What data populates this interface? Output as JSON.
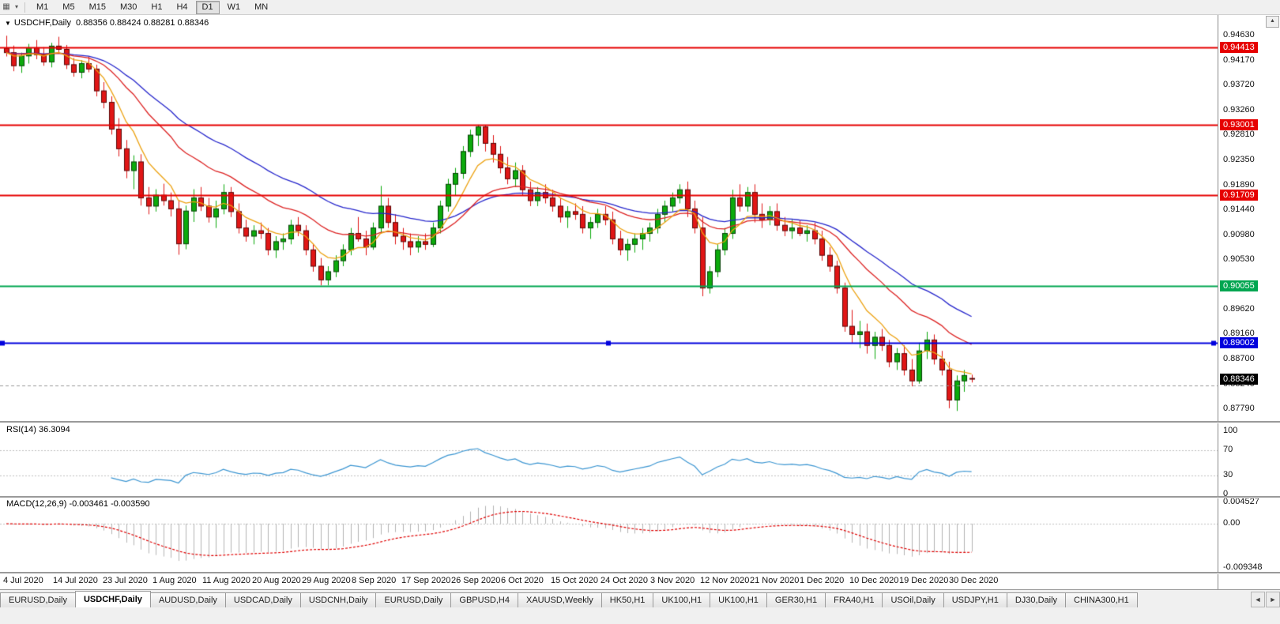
{
  "icons": {
    "chart_window": "▦",
    "dropdown": "▾",
    "chart_menu": "▼",
    "scroll_up": "▲",
    "tab_scroll_left": "◄",
    "tab_scroll_right": "►"
  },
  "toolbar": {
    "timeframes": [
      "M1",
      "M5",
      "M15",
      "M30",
      "H1",
      "H4",
      "D1",
      "W1",
      "MN"
    ],
    "active_timeframe": "D1"
  },
  "chart": {
    "symbol_title": "USDCHF,Daily",
    "ohlc_text": "0.88356 0.88424 0.88281 0.88346",
    "price_axis_ticks": [
      "0.94630",
      "0.94170",
      "0.93720",
      "0.93260",
      "0.92810",
      "0.92350",
      "0.91890",
      "0.91440",
      "0.90980",
      "0.90530",
      "0.89620",
      "0.89160",
      "0.88700",
      "0.88240",
      "0.87790"
    ]
  },
  "chart_data": {
    "type": "candlestick",
    "title": "USDCHF,Daily",
    "price_range": [
      0.8757,
      0.9485
    ],
    "bar_count": 130,
    "up_color": "#0caa0c",
    "down_color": "#e01616",
    "x_labels": [
      "4 Jul 2020",
      "14 Jul 2020",
      "23 Jul 2020",
      "1 Aug 2020",
      "11 Aug 2020",
      "20 Aug 2020",
      "29 Aug 2020",
      "8 Sep 2020",
      "17 Sep 2020",
      "26 Sep 2020",
      "6 Oct 2020",
      "15 Oct 2020",
      "24 Oct 2020",
      "3 Nov 2020",
      "12 Nov 2020",
      "21 Nov 2020",
      "1 Dec 2020",
      "10 Dec 2020",
      "19 Dec 2020",
      "30 Dec 2020"
    ],
    "candles": [
      [
        0.944,
        0.9463,
        0.9425,
        0.9432
      ],
      [
        0.9432,
        0.9445,
        0.9398,
        0.9408
      ],
      [
        0.9408,
        0.9432,
        0.9395,
        0.9426
      ],
      [
        0.9426,
        0.9448,
        0.9412,
        0.9441
      ],
      [
        0.9441,
        0.9455,
        0.942,
        0.9428
      ],
      [
        0.9428,
        0.9442,
        0.9408,
        0.9415
      ],
      [
        0.9415,
        0.945,
        0.9405,
        0.9444
      ],
      [
        0.9444,
        0.9461,
        0.943,
        0.9438
      ],
      [
        0.9438,
        0.9446,
        0.9402,
        0.941
      ],
      [
        0.941,
        0.9422,
        0.9388,
        0.9396
      ],
      [
        0.9396,
        0.9418,
        0.9385,
        0.9412
      ],
      [
        0.9412,
        0.9425,
        0.9396,
        0.9402
      ],
      [
        0.9402,
        0.941,
        0.9352,
        0.9362
      ],
      [
        0.9362,
        0.9378,
        0.933,
        0.9341
      ],
      [
        0.9341,
        0.9352,
        0.9282,
        0.9292
      ],
      [
        0.9292,
        0.9312,
        0.9242,
        0.9256
      ],
      [
        0.9256,
        0.9272,
        0.9202,
        0.9216
      ],
      [
        0.9216,
        0.9244,
        0.9182,
        0.9232
      ],
      [
        0.9232,
        0.9246,
        0.9152,
        0.9166
      ],
      [
        0.9166,
        0.9186,
        0.9136,
        0.9151
      ],
      [
        0.9151,
        0.9182,
        0.9141,
        0.9171
      ],
      [
        0.9171,
        0.9192,
        0.9152,
        0.9161
      ],
      [
        0.9161,
        0.9176,
        0.9132,
        0.9146
      ],
      [
        0.9146,
        0.9161,
        0.9062,
        0.9082
      ],
      [
        0.9082,
        0.9152,
        0.9072,
        0.9142
      ],
      [
        0.9142,
        0.9182,
        0.9122,
        0.9166
      ],
      [
        0.9166,
        0.9186,
        0.9142,
        0.9151
      ],
      [
        0.9151,
        0.9166,
        0.9121,
        0.9131
      ],
      [
        0.9131,
        0.9161,
        0.9111,
        0.9146
      ],
      [
        0.9146,
        0.9191,
        0.9136,
        0.9176
      ],
      [
        0.9176,
        0.9186,
        0.9131,
        0.9141
      ],
      [
        0.9141,
        0.9156,
        0.9101,
        0.9111
      ],
      [
        0.9111,
        0.9126,
        0.9086,
        0.9096
      ],
      [
        0.9096,
        0.9116,
        0.9081,
        0.9106
      ],
      [
        0.9106,
        0.9121,
        0.9091,
        0.9101
      ],
      [
        0.9101,
        0.9111,
        0.9061,
        0.9071
      ],
      [
        0.9071,
        0.9096,
        0.9056,
        0.9086
      ],
      [
        0.9086,
        0.9101,
        0.9071,
        0.9091
      ],
      [
        0.9091,
        0.9126,
        0.9081,
        0.9116
      ],
      [
        0.9116,
        0.9131,
        0.9096,
        0.9106
      ],
      [
        0.9106,
        0.9116,
        0.9061,
        0.9071
      ],
      [
        0.9071,
        0.9081,
        0.9031,
        0.9041
      ],
      [
        0.9041,
        0.9056,
        0.9006,
        0.9016
      ],
      [
        0.9016,
        0.9041,
        0.9006,
        0.9031
      ],
      [
        0.9031,
        0.9061,
        0.9021,
        0.9051
      ],
      [
        0.9051,
        0.9081,
        0.9041,
        0.9071
      ],
      [
        0.9071,
        0.9111,
        0.9061,
        0.9101
      ],
      [
        0.9101,
        0.9131,
        0.9086,
        0.9091
      ],
      [
        0.9091,
        0.9106,
        0.9061,
        0.9076
      ],
      [
        0.9076,
        0.9121,
        0.9071,
        0.9111
      ],
      [
        0.9111,
        0.9188,
        0.9101,
        0.9151
      ],
      [
        0.9151,
        0.9166,
        0.9111,
        0.9121
      ],
      [
        0.9121,
        0.9136,
        0.9081,
        0.9096
      ],
      [
        0.9096,
        0.9111,
        0.9071,
        0.9086
      ],
      [
        0.9086,
        0.9101,
        0.9061,
        0.9076
      ],
      [
        0.9076,
        0.9096,
        0.9066,
        0.9086
      ],
      [
        0.9086,
        0.9101,
        0.9071,
        0.9081
      ],
      [
        0.9081,
        0.9121,
        0.9076,
        0.9111
      ],
      [
        0.9111,
        0.9161,
        0.9101,
        0.9151
      ],
      [
        0.9151,
        0.9201,
        0.9141,
        0.9191
      ],
      [
        0.9191,
        0.9221,
        0.9171,
        0.9211
      ],
      [
        0.9211,
        0.9261,
        0.9201,
        0.9251
      ],
      [
        0.9251,
        0.9291,
        0.9241,
        0.9281
      ],
      [
        0.9281,
        0.93,
        0.9261,
        0.9296
      ],
      [
        0.9296,
        0.9299,
        0.9251,
        0.9266
      ],
      [
        0.9266,
        0.9281,
        0.9231,
        0.9246
      ],
      [
        0.9246,
        0.9261,
        0.9211,
        0.9221
      ],
      [
        0.9221,
        0.9241,
        0.9191,
        0.9201
      ],
      [
        0.9201,
        0.9231,
        0.9186,
        0.9216
      ],
      [
        0.9216,
        0.9226,
        0.9171,
        0.9181
      ],
      [
        0.9181,
        0.9196,
        0.9151,
        0.9161
      ],
      [
        0.9161,
        0.9186,
        0.9151,
        0.9176
      ],
      [
        0.9176,
        0.9191,
        0.9156,
        0.9166
      ],
      [
        0.9166,
        0.9181,
        0.9141,
        0.9151
      ],
      [
        0.9151,
        0.9166,
        0.9121,
        0.9131
      ],
      [
        0.9131,
        0.9151,
        0.9111,
        0.9141
      ],
      [
        0.9141,
        0.9156,
        0.9126,
        0.9136
      ],
      [
        0.9136,
        0.9151,
        0.9101,
        0.9111
      ],
      [
        0.9111,
        0.9131,
        0.9091,
        0.9121
      ],
      [
        0.9121,
        0.9146,
        0.9111,
        0.9136
      ],
      [
        0.9136,
        0.9151,
        0.9116,
        0.9126
      ],
      [
        0.9126,
        0.9141,
        0.9081,
        0.9091
      ],
      [
        0.9091,
        0.9106,
        0.9061,
        0.9071
      ],
      [
        0.9071,
        0.9091,
        0.9051,
        0.9081
      ],
      [
        0.9081,
        0.9101,
        0.9066,
        0.9091
      ],
      [
        0.9091,
        0.9111,
        0.9071,
        0.9101
      ],
      [
        0.9101,
        0.9121,
        0.9086,
        0.9111
      ],
      [
        0.9111,
        0.9146,
        0.9101,
        0.9136
      ],
      [
        0.9136,
        0.9161,
        0.9121,
        0.9151
      ],
      [
        0.9151,
        0.9176,
        0.9141,
        0.9166
      ],
      [
        0.9166,
        0.9191,
        0.9156,
        0.9181
      ],
      [
        0.9181,
        0.9196,
        0.9131,
        0.9146
      ],
      [
        0.9146,
        0.9161,
        0.9101,
        0.9111
      ],
      [
        0.9111,
        0.9131,
        0.8986,
        0.9001
      ],
      [
        0.9001,
        0.9041,
        0.8991,
        0.9031
      ],
      [
        0.9031,
        0.9081,
        0.9021,
        0.9071
      ],
      [
        0.9071,
        0.9111,
        0.9061,
        0.9101
      ],
      [
        0.9101,
        0.9181,
        0.9091,
        0.9166
      ],
      [
        0.9166,
        0.9191,
        0.9141,
        0.9151
      ],
      [
        0.9151,
        0.9186,
        0.9141,
        0.9176
      ],
      [
        0.9176,
        0.9191,
        0.9121,
        0.9136
      ],
      [
        0.9136,
        0.9156,
        0.9111,
        0.9126
      ],
      [
        0.9126,
        0.9151,
        0.9116,
        0.9141
      ],
      [
        0.9141,
        0.9156,
        0.9106,
        0.9116
      ],
      [
        0.9116,
        0.9131,
        0.9096,
        0.9106
      ],
      [
        0.9106,
        0.9126,
        0.9091,
        0.9111
      ],
      [
        0.9111,
        0.9126,
        0.9096,
        0.9101
      ],
      [
        0.9101,
        0.9116,
        0.9086,
        0.9106
      ],
      [
        0.9106,
        0.9121,
        0.9081,
        0.9091
      ],
      [
        0.9091,
        0.9106,
        0.9051,
        0.9061
      ],
      [
        0.9061,
        0.9076,
        0.9031,
        0.9041
      ],
      [
        0.9041,
        0.9051,
        0.8991,
        0.9001
      ],
      [
        0.9001,
        0.9011,
        0.8921,
        0.8931
      ],
      [
        0.8931,
        0.8961,
        0.8901,
        0.8916
      ],
      [
        0.8916,
        0.8941,
        0.8891,
        0.8921
      ],
      [
        0.8921,
        0.8936,
        0.8881,
        0.8896
      ],
      [
        0.8896,
        0.8921,
        0.8871,
        0.8911
      ],
      [
        0.8911,
        0.8926,
        0.8886,
        0.8896
      ],
      [
        0.8896,
        0.8906,
        0.8856,
        0.8866
      ],
      [
        0.8866,
        0.8891,
        0.8851,
        0.8881
      ],
      [
        0.8881,
        0.8896,
        0.8841,
        0.8851
      ],
      [
        0.8851,
        0.8871,
        0.8821,
        0.8831
      ],
      [
        0.8831,
        0.8901,
        0.8826,
        0.8886
      ],
      [
        0.8886,
        0.8921,
        0.8871,
        0.8906
      ],
      [
        0.8906,
        0.8916,
        0.8861,
        0.8871
      ],
      [
        0.8871,
        0.8886,
        0.8841,
        0.8851
      ],
      [
        0.8851,
        0.8866,
        0.8781,
        0.8796
      ],
      [
        0.8796,
        0.8841,
        0.8776,
        0.8831
      ],
      [
        0.8831,
        0.8851,
        0.8811,
        0.8841
      ],
      [
        0.88356,
        0.88424,
        0.88281,
        0.88346
      ]
    ],
    "overlays": [
      {
        "name": "ma-slow",
        "period": 34,
        "color": "#2525cc"
      },
      {
        "name": "ma-mid",
        "period": 20,
        "color": "#dd2222"
      },
      {
        "name": "ma-fast",
        "period": 7,
        "color": "#eda211"
      }
    ],
    "horizontal_lines": [
      {
        "value": 0.94413,
        "label": "0.94413",
        "color": "#e60000",
        "style": "solid"
      },
      {
        "value": 0.93001,
        "label": "0.93001",
        "color": "#e60000",
        "style": "solid"
      },
      {
        "value": 0.91709,
        "label": "0.91709",
        "color": "#e60000",
        "style": "solid"
      },
      {
        "value": 0.90055,
        "label": "0.90055",
        "color": "#00a651",
        "style": "solid"
      },
      {
        "value": 0.89002,
        "label": "0.89002",
        "color": "#0000dd",
        "style": "solid",
        "handles": true
      },
      {
        "value": 0.8823,
        "label": "",
        "color": "#9a9a9a",
        "style": "dashed"
      }
    ],
    "last_price": {
      "value": 0.88346,
      "label": "0.88346",
      "bg": "#000000",
      "fg": "#ffffff"
    },
    "indicators": {
      "rsi": {
        "label": "RSI(14) 36.3094",
        "period": 14,
        "last_value": 36.3094,
        "levels": [
          70,
          30
        ],
        "axis_ticks": [
          "100",
          "70",
          "30",
          "0"
        ],
        "range": [
          0,
          100
        ],
        "color": "#3c96d2"
      },
      "macd": {
        "label": "MACD(12,26,9) -0.003461 -0.003590",
        "fast": 12,
        "slow": 26,
        "signal": 9,
        "macd_value": -0.003461,
        "signal_value": -0.00359,
        "axis_ticks": [
          "0.004527",
          "0.00",
          "-0.009348"
        ],
        "range": [
          -0.0093481,
          0.0045271
        ],
        "histogram_color": "#b4b4b4",
        "signal_color": "#e00000"
      }
    }
  },
  "tabs": {
    "items": [
      "EURUSD,Daily",
      "USDCHF,Daily",
      "AUDUSD,Daily",
      "USDCAD,Daily",
      "USDCNH,Daily",
      "EURUSD,Daily",
      "GBPUSD,H4",
      "XAUUSD,Weekly",
      "HK50,H1",
      "UK100,H1",
      "UK100,H1",
      "GER30,H1",
      "FRA40,H1",
      "USOil,Daily",
      "USDJPY,H1",
      "DJ30,Daily",
      "CHINA300,H1"
    ],
    "active_index": 1
  }
}
